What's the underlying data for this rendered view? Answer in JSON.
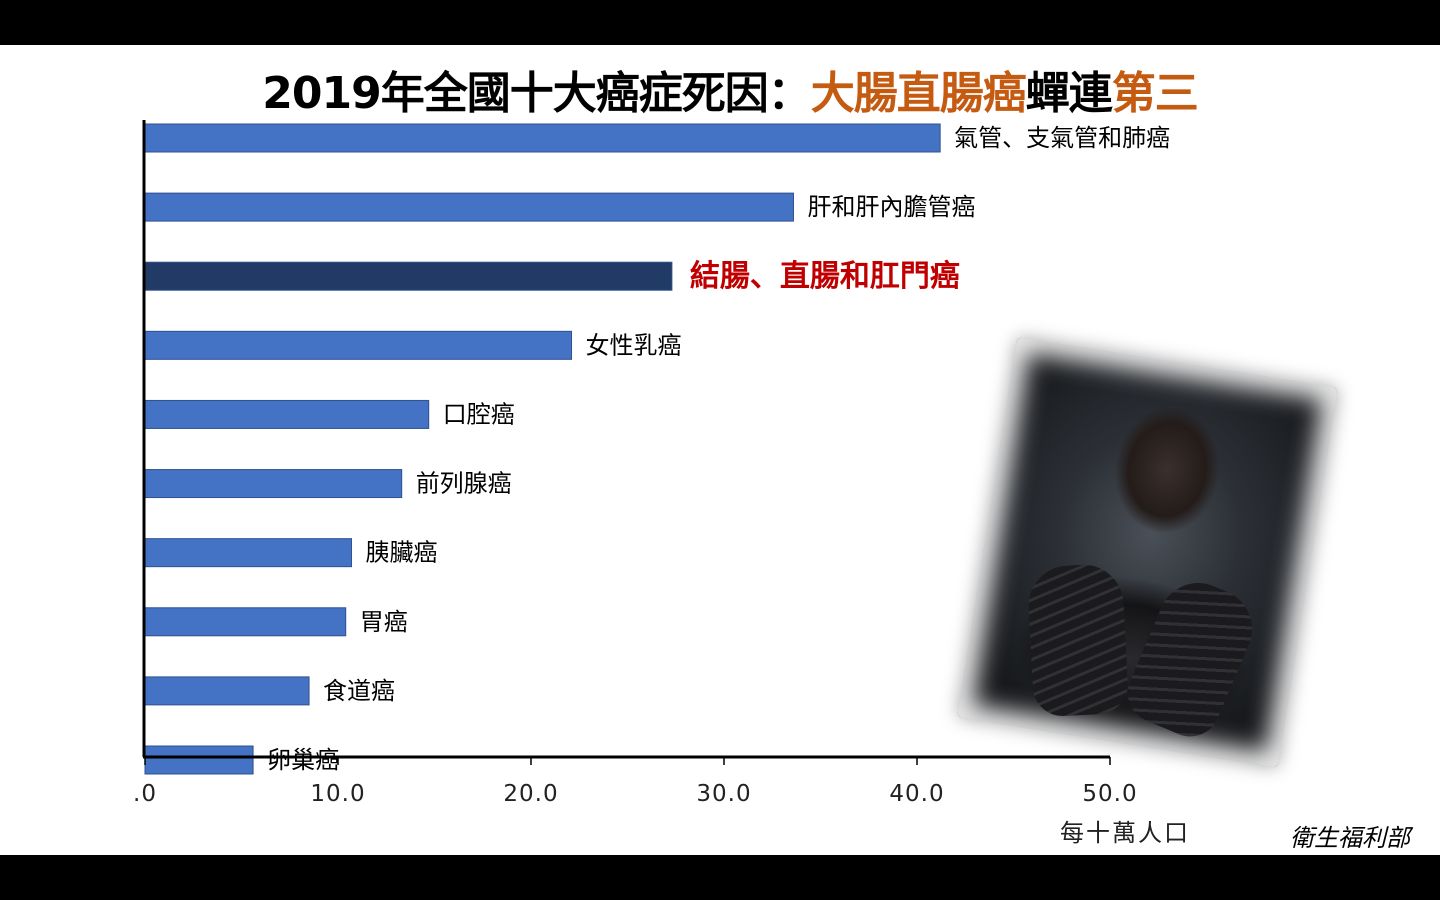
{
  "title": {
    "part1": "2019年全國十大癌症死因：",
    "part2": "大腸直腸癌",
    "part3": "蟬連",
    "part4": "第三"
  },
  "source": "衛生福利部",
  "photo": {
    "icon": "person-photo-icon"
  },
  "colors": {
    "bar": "#4472c4",
    "highlight_bar": "#213a66",
    "highlight_label": "#c00000",
    "title_accent": "#c55a11"
  },
  "chart_data": {
    "type": "bar",
    "orientation": "horizontal",
    "categories": [
      "氣管、支氣管和肺癌",
      "肝和肝內膽管癌",
      "結腸、直腸和肛門癌",
      "女性乳癌",
      "口腔癌",
      "前列腺癌",
      "胰臟癌",
      "胃癌",
      "食道癌",
      "卵巢癌"
    ],
    "values": [
      41.2,
      33.6,
      27.3,
      22.1,
      14.7,
      13.3,
      10.7,
      10.4,
      8.5,
      5.6
    ],
    "highlight_index": 2,
    "xlim": [
      0,
      50
    ],
    "x_ticks": [
      ".0",
      "10.0",
      "20.0",
      "30.0",
      "40.0",
      "50.0"
    ],
    "x_tick_values": [
      0,
      10,
      20,
      30,
      40,
      50
    ],
    "xlabel": "每十萬人口",
    "grid": false,
    "legend": "none"
  }
}
